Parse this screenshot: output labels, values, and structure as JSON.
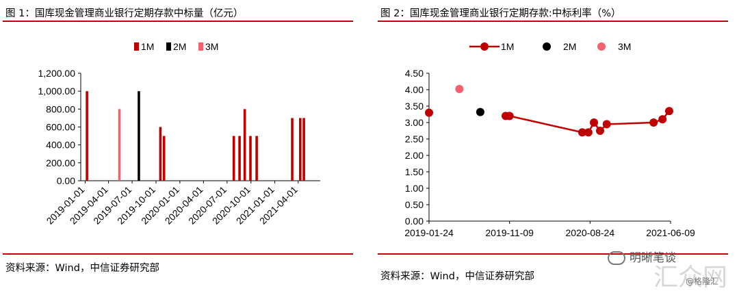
{
  "left": {
    "title": "图 1：国库现金管理商业银行定期存款中标量（亿元）",
    "source": "资料来源：Wind，中信证券研究部"
  },
  "right": {
    "title": "图 2：国库现金管理商业银行定期存款:中标利率（%）",
    "source": "资料来源：Wind，中信证券研究部"
  },
  "colors": {
    "rule": "#c00000",
    "1M": "#c00000",
    "2M": "#000000",
    "3M": "#f4606c"
  },
  "watermark": {
    "text": "明晰笔谈",
    "faint": "汇众网",
    "small": "@格隆汇"
  },
  "chart_data": [
    {
      "type": "bar",
      "title": "",
      "xlabel": "",
      "ylabel": "",
      "ylim": [
        0,
        1200
      ],
      "yticks": [
        "1,200.00",
        "1,000.00",
        "800.00",
        "600.00",
        "400.00",
        "200.00",
        "0.00"
      ],
      "xticks": [
        "2019-01-01",
        "2019-04-01",
        "2019-07-01",
        "2019-10-01",
        "2020-01-01",
        "2020-04-01",
        "2020-07-01",
        "2020-10-01",
        "2021-01-01",
        "2021-04-01"
      ],
      "xrange": [
        "2018-12-15",
        "2021-06-25"
      ],
      "legend": {
        "position": "top",
        "entries": [
          "1M",
          "2M",
          "3M"
        ]
      },
      "series": [
        {
          "name": "1M",
          "points": [
            {
              "x": "2019-01-08",
              "y": 1000
            },
            {
              "x": "2019-10-18",
              "y": 600
            },
            {
              "x": "2019-11-01",
              "y": 500
            },
            {
              "x": "2020-07-27",
              "y": 500
            },
            {
              "x": "2020-08-18",
              "y": 500
            },
            {
              "x": "2020-09-07",
              "y": 800
            },
            {
              "x": "2020-09-29",
              "y": 500
            },
            {
              "x": "2020-10-23",
              "y": 500
            },
            {
              "x": "2021-03-09",
              "y": 700
            },
            {
              "x": "2021-04-09",
              "y": 700
            },
            {
              "x": "2021-04-23",
              "y": 700
            }
          ]
        },
        {
          "name": "2M",
          "points": [
            {
              "x": "2019-07-27",
              "y": 1000
            }
          ]
        },
        {
          "name": "3M",
          "points": [
            {
              "x": "2019-05-13",
              "y": 800
            }
          ]
        }
      ]
    },
    {
      "type": "line",
      "title": "",
      "xlabel": "",
      "ylabel": "",
      "ylim": [
        0,
        4.5
      ],
      "yticks": [
        "4.50",
        "4.00",
        "3.50",
        "3.00",
        "2.50",
        "2.00",
        "1.50",
        "1.00",
        "0.50",
        "0.00"
      ],
      "xticks": [
        "2019-01-24",
        "2019-11-09",
        "2020-08-24",
        "2021-06-09"
      ],
      "xrange": [
        "2019-01-24",
        "2021-06-09"
      ],
      "legend": {
        "position": "top",
        "entries": [
          "1M",
          "2M",
          "3M"
        ]
      },
      "series": [
        {
          "name": "1M",
          "isolated": [
            {
              "x": "2019-01-24",
              "y": 3.3
            }
          ],
          "points": [
            {
              "x": "2019-10-26",
              "y": 3.2
            },
            {
              "x": "2019-11-09",
              "y": 3.2
            },
            {
              "x": "2020-07-27",
              "y": 2.7
            },
            {
              "x": "2020-08-18",
              "y": 2.7
            },
            {
              "x": "2020-09-07",
              "y": 3.0
            },
            {
              "x": "2020-09-29",
              "y": 2.75
            },
            {
              "x": "2020-10-23",
              "y": 2.95
            },
            {
              "x": "2021-04-09",
              "y": 3.0
            },
            {
              "x": "2021-05-11",
              "y": 3.1
            },
            {
              "x": "2021-06-04",
              "y": 3.35
            }
          ]
        },
        {
          "name": "2M",
          "points": [
            {
              "x": "2019-07-27",
              "y": 3.32
            }
          ]
        },
        {
          "name": "3M",
          "points": [
            {
              "x": "2019-05-13",
              "y": 4.02
            }
          ]
        }
      ]
    }
  ]
}
